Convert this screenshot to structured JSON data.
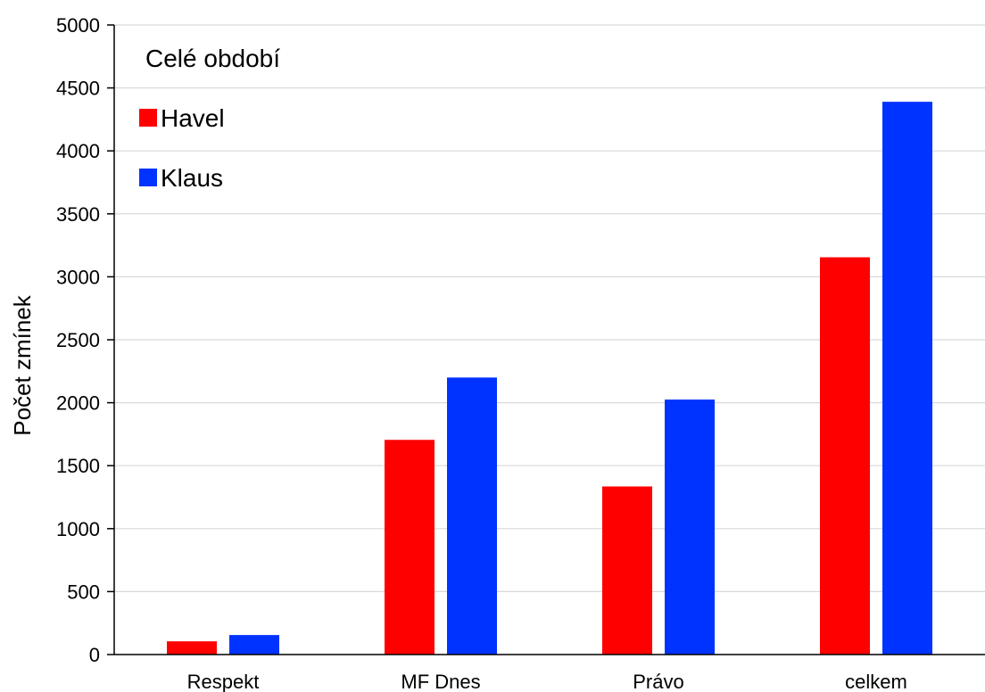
{
  "chart_data": {
    "type": "bar",
    "categories": [
      "Respekt",
      "MF Dnes",
      "Právo",
      "celkem"
    ],
    "series": [
      {
        "name": "Havel",
        "color": "#ff0000",
        "values": [
          105,
          1705,
          1335,
          3155
        ]
      },
      {
        "name": "Klaus",
        "color": "#0033ff",
        "values": [
          155,
          2200,
          2025,
          4390
        ]
      }
    ],
    "legend_title": "Celé období",
    "ylabel": "Počet zmínek",
    "ylim": [
      0,
      5000
    ],
    "yticks": [
      0,
      500,
      1000,
      1500,
      2000,
      2500,
      3000,
      3500,
      4000,
      4500,
      5000
    ],
    "grid": true,
    "legend_position": "top-left"
  }
}
